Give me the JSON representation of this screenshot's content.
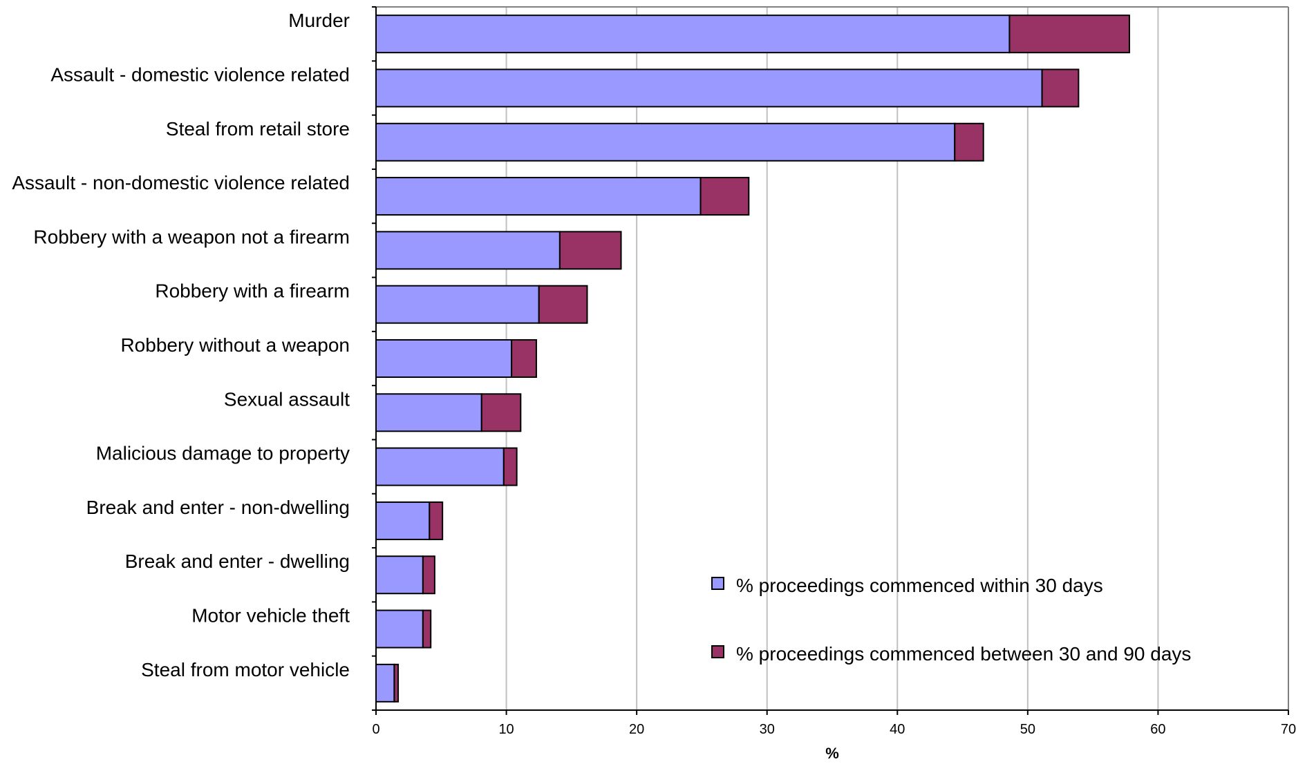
{
  "chart_data": {
    "type": "bar",
    "orientation": "horizontal",
    "stacked": true,
    "categories": [
      "Murder",
      "Assault - domestic violence related",
      "Steal from retail store",
      "Assault - non-domestic violence related",
      "Robbery with a weapon not a firearm",
      "Robbery with a firearm",
      "Robbery without a weapon",
      "Sexual assault",
      "Malicious damage to property",
      "Break and enter - non-dwelling",
      "Break and enter - dwelling",
      "Motor vehicle theft",
      "Steal from motor vehicle"
    ],
    "series": [
      {
        "name": "% proceedings commenced within 30 days",
        "color": "#9999FF",
        "values": [
          48.6,
          51.1,
          44.4,
          24.9,
          14.1,
          12.5,
          10.4,
          8.1,
          9.8,
          4.1,
          3.6,
          3.6,
          1.4
        ]
      },
      {
        "name": "% proceedings commenced between 30 and 90 days",
        "color": "#993366",
        "values": [
          9.2,
          2.8,
          2.2,
          3.7,
          4.7,
          3.7,
          1.9,
          3.0,
          1.0,
          1.0,
          0.9,
          0.6,
          0.3
        ]
      }
    ],
    "xlabel": "%",
    "ylabel": "",
    "xlim": [
      0,
      70
    ],
    "xticks": [
      0,
      10,
      20,
      30,
      40,
      50,
      60,
      70
    ],
    "grid": "vertical",
    "legend_position": "bottom-right inside plot"
  }
}
